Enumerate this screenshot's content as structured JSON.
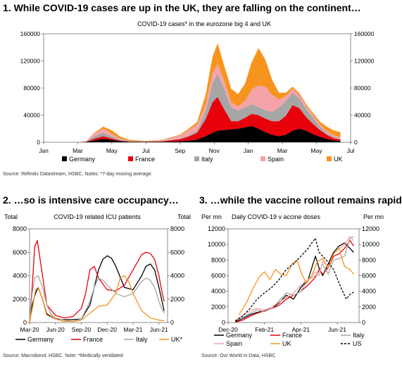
{
  "panel1": {
    "heading": "1. While COVID-19 cases are up in the UK, they are falling on the continent…",
    "chart_title": "COVID-19 cases* in the eurozone big 4 and UK",
    "source": "Source: Refinitiv Datastream, HSBC. Notes: *7-day moving average."
  },
  "panel2": {
    "heading": "2. …so is intensive care occupancy…",
    "chart_title": "COVID-19 related ICU patients",
    "left_unit": "Total",
    "right_unit": "Total",
    "source": "Source: Macrobond, HSBC. Note: *Medically ventilated"
  },
  "panel3": {
    "heading": "3. …while the vaccine rollout remains rapid",
    "chart_title": "Daily COVID-19 v accine doses",
    "left_unit": "Per mn",
    "right_unit": "Per mn",
    "source": "Source: Our World in Data, HSBC"
  },
  "colors": {
    "Germany": "#000000",
    "France": "#e8000b",
    "Italy": "#a6a6a6",
    "Spain": "#f4a3a8",
    "UK": "#f7941d",
    "US": "#000000"
  },
  "chart_data": [
    {
      "type": "area",
      "stacked": true,
      "title": "COVID-19 cases* in the eurozone big 4 and UK",
      "x_ticks": [
        "Jan",
        "Mar",
        "May",
        "Jul",
        "Sep",
        "Nov",
        "Jan",
        "Mar",
        "May",
        "Jul"
      ],
      "x_range": [
        0,
        18
      ],
      "ylim": [
        0,
        160000
      ],
      "y_ticks": [
        0,
        40000,
        80000,
        120000,
        160000
      ],
      "y_tick_labels": [
        "0",
        "40000",
        "80000",
        "120000",
        "160000"
      ],
      "grid": false,
      "legend": "bottom",
      "x": [
        0,
        2,
        2.5,
        3,
        3.5,
        4,
        4.5,
        5,
        6,
        7,
        8,
        8.5,
        9,
        9.5,
        9.9,
        10.2,
        10.6,
        11,
        11.4,
        11.8,
        12.2,
        12.6,
        13,
        13.4,
        13.8,
        14.2,
        14.6,
        15,
        15.4,
        15.8,
        16.2,
        16.6,
        17,
        17.4
      ],
      "series": [
        {
          "name": "Germany",
          "values": [
            0,
            0,
            500,
            3000,
            5000,
            3500,
            1500,
            800,
            500,
            800,
            1500,
            2500,
            4000,
            9000,
            14000,
            17000,
            18000,
            19000,
            20000,
            22000,
            24000,
            20000,
            15000,
            11000,
            9000,
            11000,
            17000,
            20000,
            17000,
            12000,
            8000,
            5000,
            3000,
            2000
          ]
        },
        {
          "name": "France",
          "values": [
            0,
            0,
            300,
            2500,
            4000,
            2000,
            800,
            500,
            300,
            800,
            3000,
            6000,
            10000,
            25000,
            45000,
            50000,
            30000,
            12000,
            11000,
            14000,
            18000,
            20000,
            20000,
            20000,
            22000,
            28000,
            38000,
            30000,
            20000,
            15000,
            10000,
            6000,
            3000,
            2000
          ]
        },
        {
          "name": "Italy",
          "values": [
            0,
            0,
            500,
            4000,
            5000,
            3000,
            1500,
            500,
            300,
            300,
            800,
            1500,
            3000,
            12000,
            28000,
            34000,
            30000,
            20000,
            16000,
            15000,
            14000,
            12000,
            12000,
            14000,
            20000,
            22000,
            18000,
            15000,
            12000,
            9000,
            5000,
            3000,
            2000,
            1000
          ]
        },
        {
          "name": "Spain",
          "values": [
            0,
            0,
            300,
            4000,
            6000,
            4000,
            1500,
            500,
            300,
            1500,
            5000,
            8000,
            9000,
            10000,
            14000,
            15000,
            12000,
            8000,
            6000,
            10000,
            22000,
            32000,
            35000,
            25000,
            12000,
            7000,
            6000,
            5000,
            4500,
            4000,
            3500,
            3000,
            2500,
            2000
          ]
        },
        {
          "name": "UK",
          "values": [
            0,
            0,
            200,
            1000,
            3000,
            5000,
            3000,
            1500,
            600,
            500,
            1000,
            2000,
            4000,
            14000,
            25000,
            30000,
            22000,
            20000,
            18000,
            25000,
            40000,
            55000,
            40000,
            22000,
            10000,
            5000,
            3000,
            2500,
            2500,
            3000,
            4000,
            6000,
            7000,
            8000
          ]
        }
      ]
    },
    {
      "type": "line",
      "title": "COVID-19 related ICU patients",
      "x_ticks": [
        "Mar-20",
        "Jun-20",
        "Sep-20",
        "Dec-20",
        "Mar-21",
        "Jun-21"
      ],
      "x_range": [
        0,
        16
      ],
      "ylabel": "Total",
      "ylim": [
        0,
        8000
      ],
      "y_ticks": [
        0,
        2000,
        4000,
        6000,
        8000
      ],
      "grid": false,
      "legend": "bottom",
      "series": [
        {
          "name": "Germany",
          "x": [
            0,
            0.3,
            0.7,
            1,
            1.5,
            2,
            3,
            4,
            5,
            6,
            7,
            7.5,
            8,
            8.5,
            9,
            9.5,
            10,
            11,
            12,
            13,
            13.5,
            14,
            14.5,
            15,
            15.3,
            15.6
          ],
          "values": [
            0,
            1500,
            2500,
            3000,
            2000,
            700,
            300,
            250,
            250,
            300,
            1500,
            3000,
            4500,
            5400,
            5700,
            5500,
            4800,
            3000,
            2800,
            4000,
            4800,
            5000,
            4500,
            3000,
            2000,
            1000
          ]
        },
        {
          "name": "France",
          "x": [
            0,
            0.3,
            0.6,
            0.9,
            1.2,
            1.6,
            2,
            3,
            4,
            5,
            6,
            6.5,
            7,
            7.5,
            8,
            9,
            10,
            11,
            12,
            13,
            13.5,
            14,
            14.5,
            15,
            15.3,
            15.6
          ],
          "values": [
            0,
            3000,
            6500,
            7000,
            5500,
            3500,
            1500,
            600,
            400,
            500,
            1200,
            2500,
            4500,
            4800,
            3800,
            2800,
            2700,
            3200,
            4500,
            5800,
            6000,
            5900,
            5400,
            4000,
            2800,
            1800
          ]
        },
        {
          "name": "Italy",
          "x": [
            0,
            0.3,
            0.6,
            1,
            1.5,
            2,
            2.5,
            3,
            4,
            5,
            6,
            7,
            7.5,
            8,
            8.5,
            9,
            10,
            11,
            12,
            13,
            13.5,
            14,
            14.5,
            15,
            15.3,
            15.6
          ],
          "values": [
            0,
            2500,
            3800,
            4000,
            3000,
            1500,
            700,
            400,
            200,
            100,
            300,
            1800,
            3000,
            3800,
            3600,
            3200,
            2500,
            2200,
            2500,
            3500,
            3800,
            3600,
            3000,
            1800,
            1200,
            800
          ]
        },
        {
          "name": "UK*",
          "x": [
            0,
            0.4,
            0.7,
            1,
            1.5,
            2,
            3,
            4,
            5,
            6,
            7,
            8,
            9,
            10,
            10.5,
            11,
            11.5,
            12,
            13,
            14,
            15,
            15.6
          ],
          "values": [
            0,
            1500,
            2800,
            3000,
            2000,
            800,
            300,
            100,
            100,
            200,
            800,
            1400,
            1500,
            2500,
            3800,
            4000,
            3500,
            2500,
            1000,
            400,
            200,
            150
          ]
        }
      ]
    },
    {
      "type": "line",
      "title": "Daily COVID-19 v accine doses",
      "x_ticks": [
        "Dec-20",
        "Feb-21",
        "Apr-21",
        "Jun-21"
      ],
      "x_range": [
        0,
        7.2
      ],
      "ylabel": "Per mn",
      "ylim": [
        0,
        12000
      ],
      "y_ticks": [
        0,
        2000,
        4000,
        6000,
        8000,
        10000,
        12000
      ],
      "grid": false,
      "legend": "bottom",
      "series": [
        {
          "name": "Germany",
          "x": [
            0.4,
            0.8,
            1.2,
            1.6,
            2,
            2.4,
            2.8,
            3.2,
            3.6,
            4,
            4.4,
            4.8,
            5,
            5.2,
            5.5,
            5.8,
            6.1,
            6.4,
            6.7,
            6.9
          ],
          "values": [
            100,
            500,
            1000,
            1300,
            1500,
            1800,
            2500,
            3500,
            3000,
            4500,
            5500,
            8500,
            7000,
            6000,
            7500,
            9000,
            9800,
            10200,
            9500,
            9000
          ]
        },
        {
          "name": "France",
          "x": [
            0.4,
            0.8,
            1.2,
            1.6,
            2,
            2.4,
            2.8,
            3.2,
            3.6,
            4,
            4.4,
            4.8,
            5,
            5.2,
            5.5,
            5.8,
            6.1,
            6.4,
            6.7,
            6.9
          ],
          "values": [
            50,
            300,
            800,
            1200,
            1500,
            1800,
            2200,
            3000,
            3500,
            4000,
            4800,
            5800,
            6800,
            6200,
            7000,
            8500,
            8800,
            9500,
            10500,
            9800
          ]
        },
        {
          "name": "Italy",
          "x": [
            0.4,
            0.8,
            1.2,
            1.6,
            2,
            2.4,
            2.8,
            3.2,
            3.6,
            4,
            4.4,
            4.8,
            5,
            5.2,
            5.5,
            5.8,
            6.1,
            6.4,
            6.7,
            6.9
          ],
          "values": [
            200,
            600,
            1200,
            1600,
            1400,
            1800,
            2800,
            3800,
            3500,
            4000,
            5500,
            6000,
            6500,
            7500,
            6200,
            8000,
            8200,
            8500,
            10800,
            11000
          ]
        },
        {
          "name": "Spain",
          "x": [
            0.4,
            0.8,
            1.2,
            1.6,
            2,
            2.4,
            2.8,
            3.2,
            3.6,
            4,
            4.4,
            4.8,
            5,
            5.2,
            5.5,
            5.8,
            6.1,
            6.4,
            6.7,
            6.9
          ],
          "values": [
            300,
            900,
            1500,
            1800,
            1600,
            2000,
            2600,
            3200,
            3800,
            4800,
            5500,
            6500,
            6000,
            7800,
            7200,
            8800,
            9500,
            10000,
            11000,
            10500
          ]
        },
        {
          "name": "UK",
          "x": [
            0.6,
            1,
            1.4,
            1.7,
            2,
            2.3,
            2.6,
            2.9,
            3.2,
            3.5,
            3.8,
            4,
            4.3,
            4.6,
            4.9,
            5.2,
            5.5,
            5.8,
            6.1,
            6.4,
            6.7,
            6.9
          ],
          "values": [
            1000,
            2500,
            4500,
            5800,
            6500,
            5500,
            6800,
            6200,
            6000,
            7500,
            8000,
            6500,
            5000,
            6000,
            7800,
            8200,
            7000,
            8800,
            9500,
            7200,
            6800,
            6200
          ]
        },
        {
          "name": "US",
          "x": [
            0.4,
            0.8,
            1.2,
            1.6,
            2,
            2.4,
            2.8,
            3.2,
            3.6,
            4,
            4.4,
            4.6,
            4.8,
            5,
            5.4,
            5.8,
            6.2,
            6.5,
            6.7,
            6.9
          ],
          "values": [
            200,
            800,
            1800,
            3000,
            3800,
            4500,
            5500,
            6800,
            7500,
            8500,
            9500,
            10200,
            10800,
            9000,
            8000,
            6800,
            4500,
            3000,
            3600,
            3900
          ]
        }
      ]
    }
  ]
}
